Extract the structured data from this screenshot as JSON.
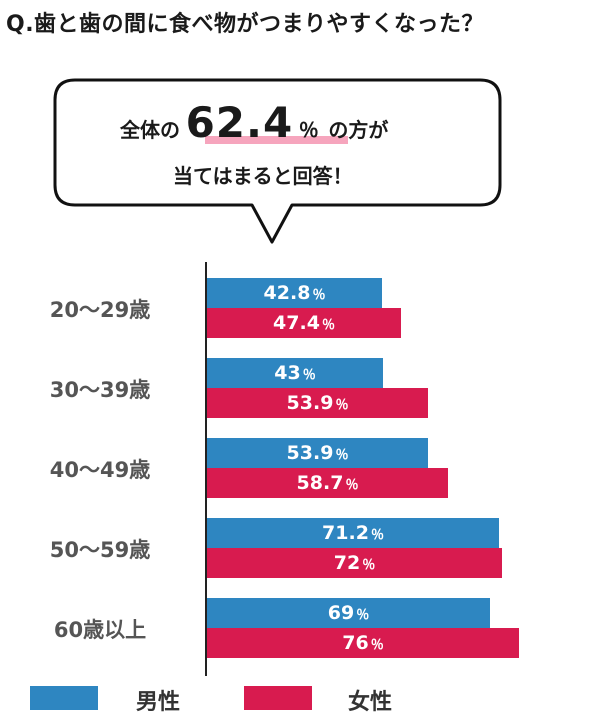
{
  "title": "Q.歯と歯の間に食べ物がつまりやすくなった？",
  "callout": {
    "line1_pre": "全体の",
    "highlight_value": "62.4",
    "highlight_unit": "％",
    "line1_post": "の方が",
    "line2": "当てはまると回答！"
  },
  "legend": {
    "male": "男性",
    "female": "女性"
  },
  "colors": {
    "male": "#2e86c1",
    "female": "#d81b4f",
    "highlight": "#f6a5bd"
  },
  "chart_data": {
    "type": "bar",
    "orientation": "horizontal",
    "categories": [
      "20〜29歳",
      "30〜39歳",
      "40〜49歳",
      "50〜59歳",
      "60歳以上"
    ],
    "series": [
      {
        "name": "男性",
        "values": [
          42.8,
          43,
          53.9,
          71.2,
          69
        ],
        "labels": [
          "42.8",
          "43",
          "53.9",
          "71.2",
          "69"
        ]
      },
      {
        "name": "女性",
        "values": [
          47.4,
          53.9,
          58.7,
          72,
          76
        ],
        "labels": [
          "47.4",
          "53.9",
          "58.7",
          "72",
          "76"
        ]
      }
    ],
    "unit": "％",
    "xlim": [
      0,
      100
    ]
  }
}
